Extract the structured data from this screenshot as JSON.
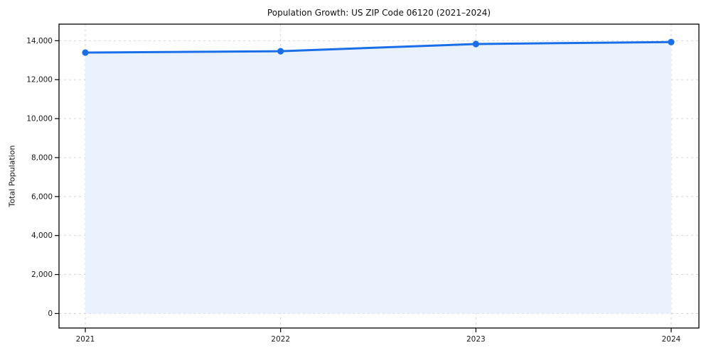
{
  "figure": {
    "title": "Population Growth: US ZIP Code 06120 (2021–2024)",
    "ylabel": "Total Population"
  },
  "chart_data": {
    "type": "area",
    "title": "Population Growth: US ZIP Code 06120 (2021–2024)",
    "xlabel": "",
    "ylabel": "Total Population",
    "categories": [
      "2021",
      "2022",
      "2023",
      "2024"
    ],
    "series": [
      {
        "name": "Total Population",
        "values": [
          13390,
          13460,
          13830,
          13930
        ]
      }
    ],
    "ylim": [
      0,
      14000
    ],
    "ytick_step": 2000,
    "ytick_values": [
      0,
      2000,
      4000,
      6000,
      8000,
      10000,
      12000,
      14000
    ],
    "ytick_labels": [
      "0",
      "2,000",
      "4,000",
      "6,000",
      "8,000",
      "10,000",
      "12,000",
      "14,000"
    ],
    "grid": true,
    "grid_style": "dashed",
    "legend_position": "none",
    "colors": {
      "line": "#1a6fe8",
      "marker": "#1a6fe8",
      "area_fill": "#e8f1fc",
      "grid": "#cfcfcf",
      "axis": "#000000",
      "text": "#1a1a1a"
    }
  }
}
